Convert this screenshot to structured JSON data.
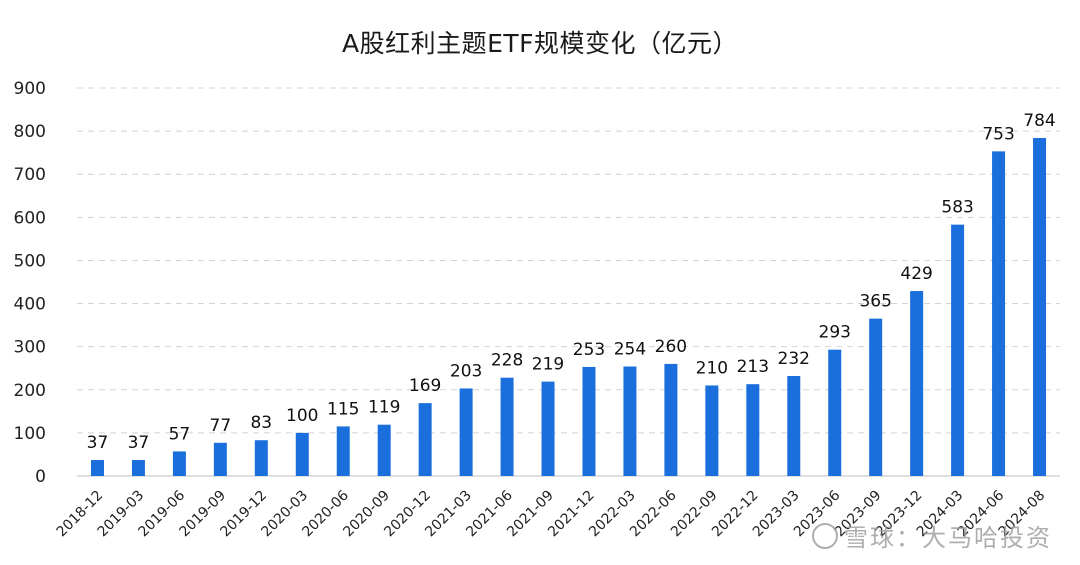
{
  "chart_data": {
    "type": "bar",
    "title": "A股红利主题ETF规模变化（亿元）",
    "xlabel": "",
    "ylabel": "",
    "ylim": [
      0,
      900
    ],
    "yticks": [
      0,
      100,
      200,
      300,
      400,
      500,
      600,
      700,
      800,
      900
    ],
    "grid": true,
    "bar_color": "#1a6fdc",
    "categories": [
      "2018-12",
      "2019-03",
      "2019-06",
      "2019-09",
      "2019-12",
      "2020-03",
      "2020-06",
      "2020-09",
      "2020-12",
      "2021-03",
      "2021-06",
      "2021-09",
      "2021-12",
      "2022-03",
      "2022-06",
      "2022-09",
      "2022-12",
      "2023-03",
      "2023-06",
      "2023-09",
      "2023-12",
      "2024-03",
      "2024-06",
      "2024-08"
    ],
    "values": [
      37,
      37,
      57,
      77,
      83,
      100,
      115,
      119,
      169,
      203,
      228,
      219,
      253,
      254,
      260,
      210,
      213,
      232,
      293,
      365,
      429,
      583,
      753,
      784
    ]
  },
  "watermark": {
    "text": "雪球：大马哈投资"
  }
}
